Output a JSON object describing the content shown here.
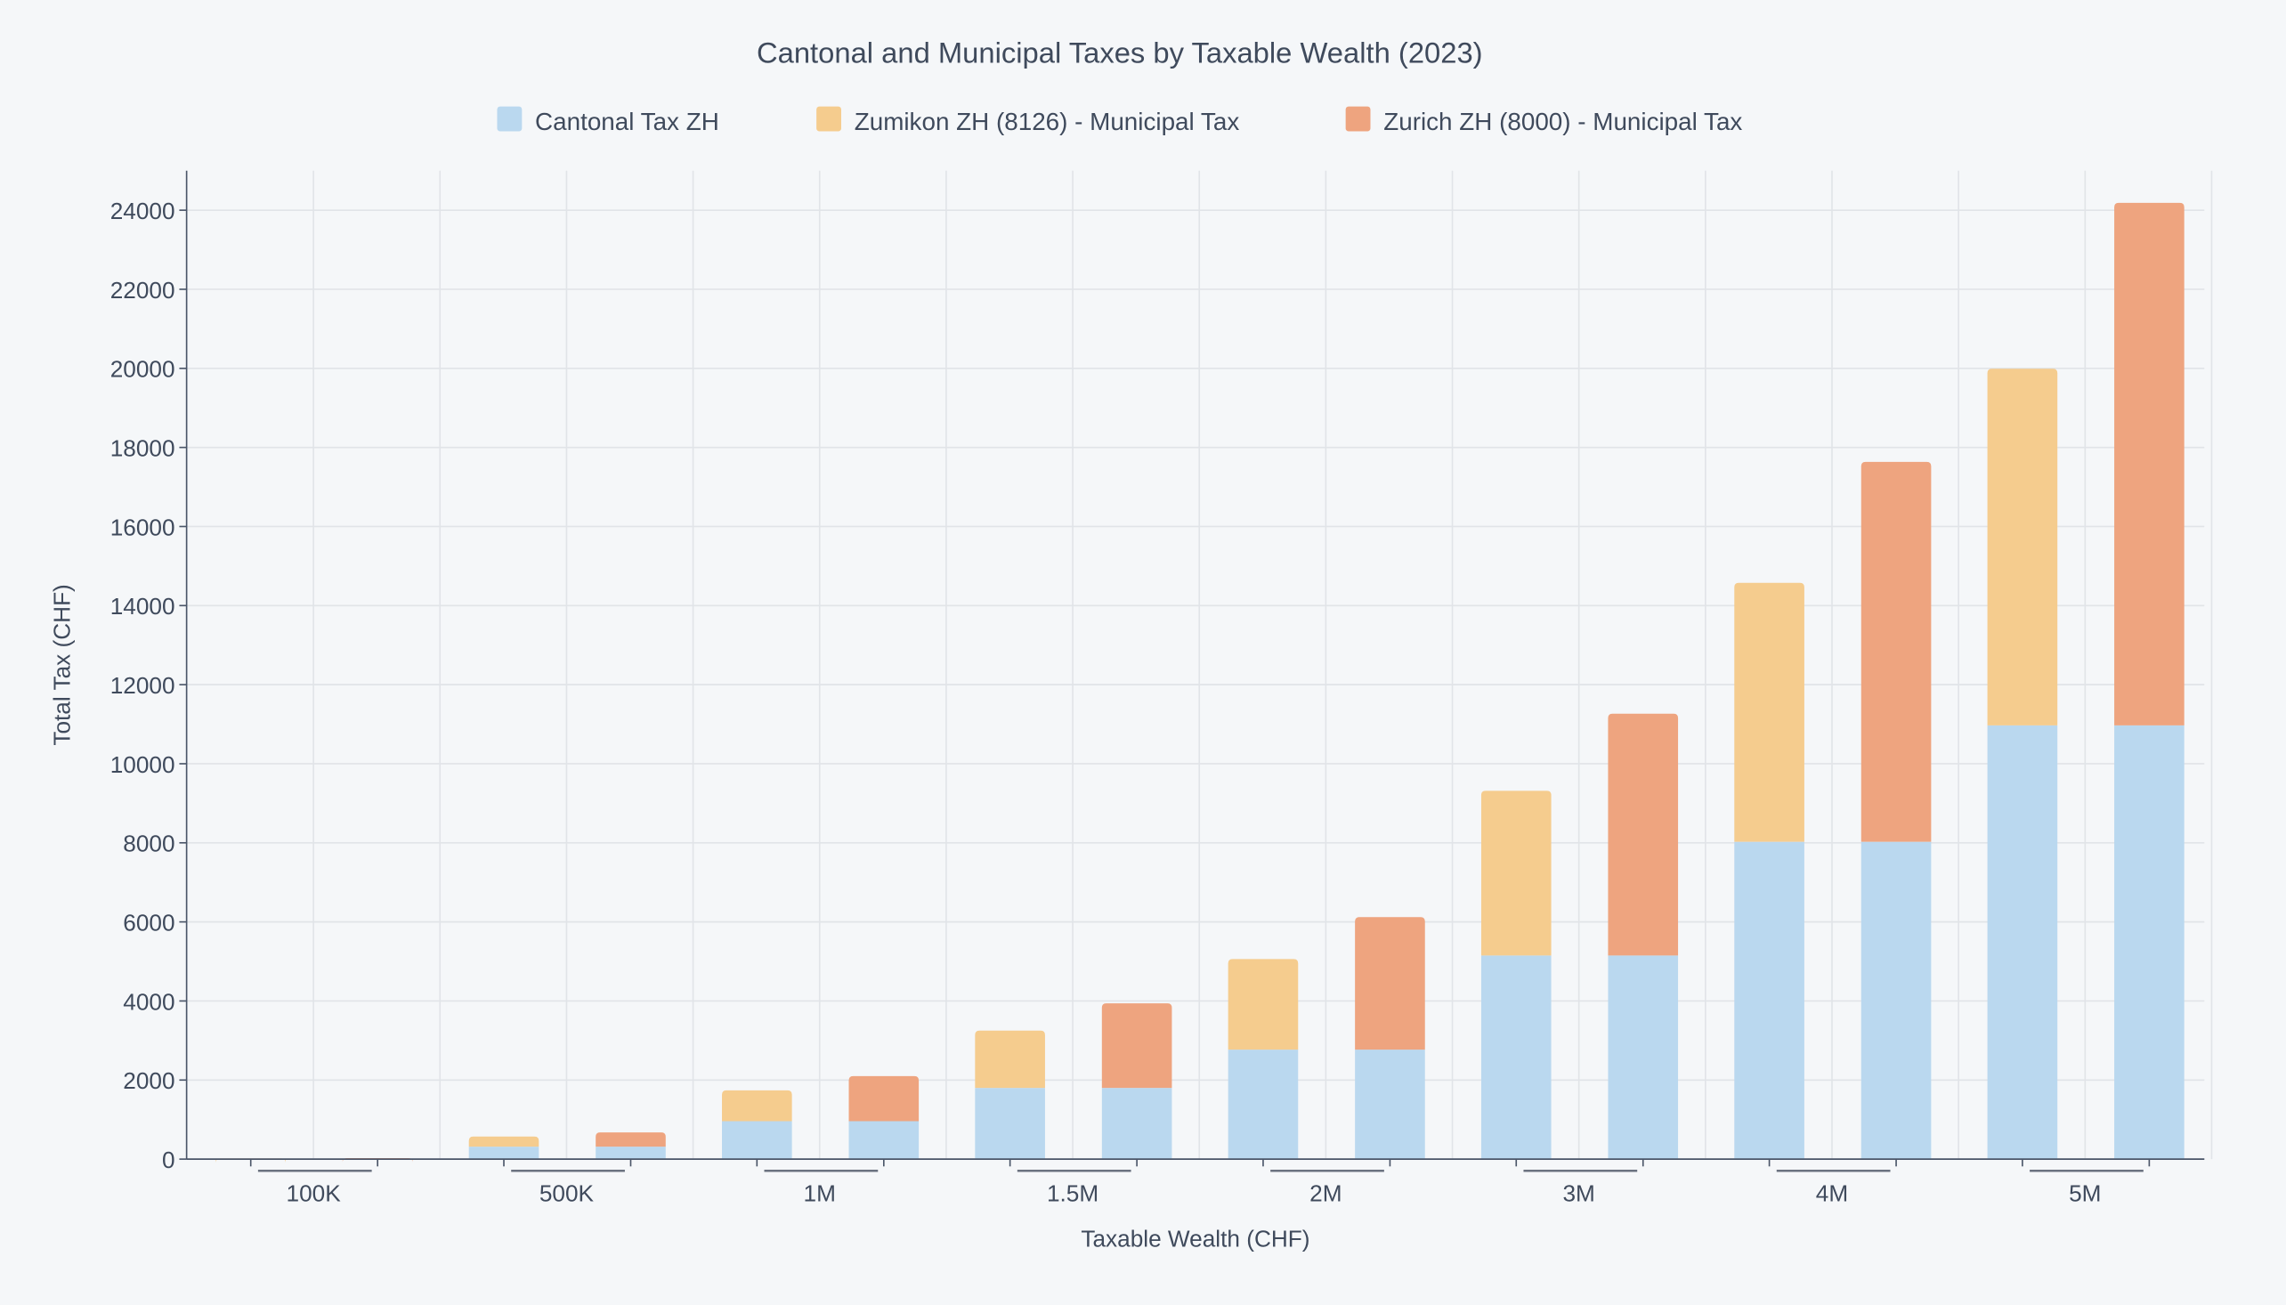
{
  "chart_data": {
    "type": "bar",
    "stacked": true,
    "title": "Cantonal and Municipal Taxes by Taxable Wealth (2023)",
    "xlabel": "Taxable Wealth (CHF)",
    "ylabel": "Total Tax (CHF)",
    "ylim": [
      0,
      25000
    ],
    "yticks": [
      0,
      2000,
      4000,
      6000,
      8000,
      10000,
      12000,
      14000,
      16000,
      18000,
      20000,
      22000,
      24000
    ],
    "grid": true,
    "legend_position": "top",
    "categories": [
      "100K",
      "500K",
      "1M",
      "1.5M",
      "2M",
      "3M",
      "4M",
      "5M"
    ],
    "legend": [
      {
        "name": "Cantonal Tax ZH",
        "color": "#bad8ef"
      },
      {
        "name": "Zumikon ZH (8126) - Municipal Tax",
        "color": "#f5cc8e"
      },
      {
        "name": "Zurich ZH (8000) - Municipal Tax",
        "color": "#eea47f"
      }
    ],
    "bars": [
      {
        "municipality": "Zumikon ZH (8126)",
        "cantonal": [
          10,
          315,
          960,
          1800,
          2770,
          5150,
          8025,
          10970
        ],
        "municipal": [
          8,
          255,
          780,
          1450,
          2290,
          4165,
          6550,
          9020
        ]
      },
      {
        "municipality": "Zurich ZH (8000)",
        "cantonal": [
          10,
          315,
          960,
          1800,
          2770,
          5150,
          8025,
          10970
        ],
        "municipal": [
          14,
          360,
          1140,
          2140,
          3350,
          6115,
          9610,
          13215
        ]
      }
    ]
  }
}
